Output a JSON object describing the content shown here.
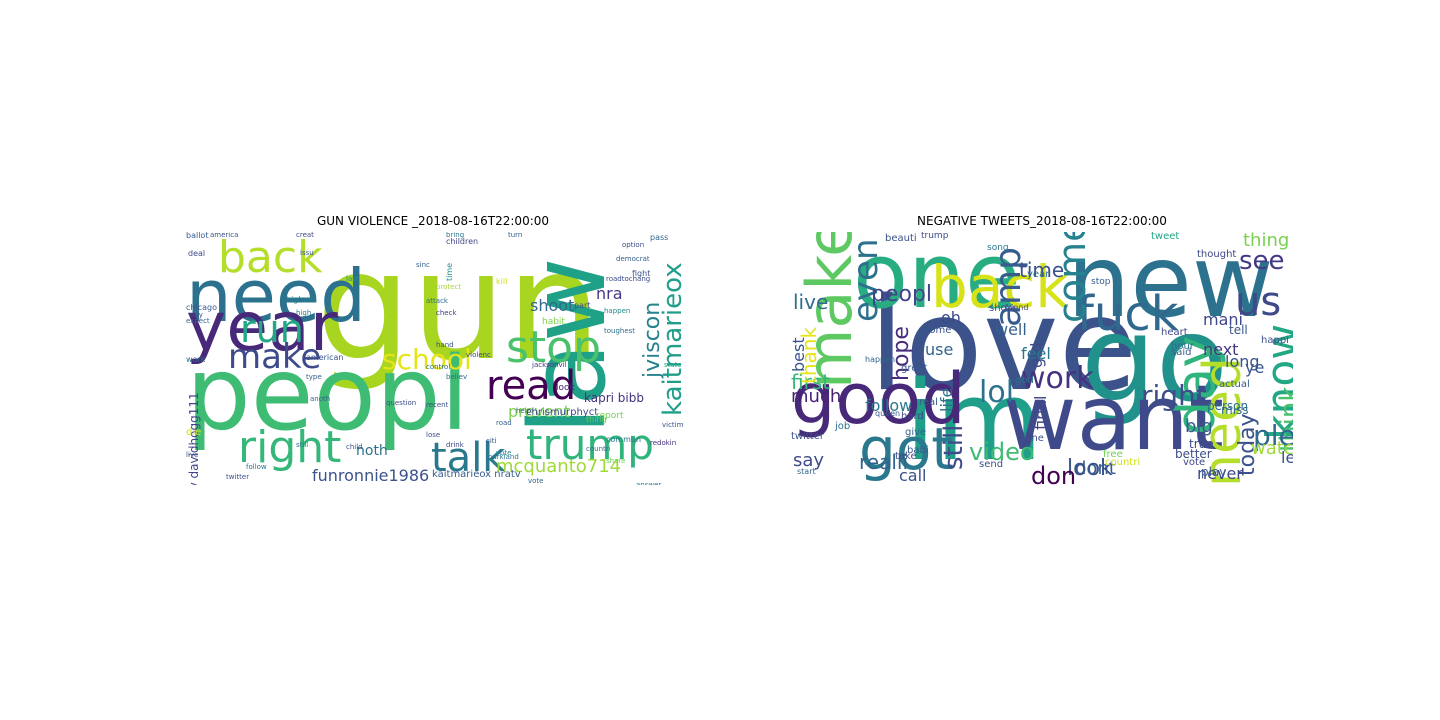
{
  "figure": {
    "panels": [
      {
        "title": "GUN VIOLENCE _2018-08-16T22:00:00",
        "words": [
          {
            "text": "gun",
            "color": "#a8d520"
          },
          {
            "text": "peopl",
            "color": "#3fbc73"
          },
          {
            "text": "law",
            "color": "#1fa187"
          },
          {
            "text": "need",
            "color": "#2c728e"
          },
          {
            "text": "year",
            "color": "#482878"
          },
          {
            "text": "back",
            "color": "#b5de2b"
          },
          {
            "text": "right",
            "color": "#35b779"
          },
          {
            "text": "make",
            "color": "#3e4a89"
          },
          {
            "text": "run",
            "color": "#22a884"
          },
          {
            "text": "stop",
            "color": "#4ac16d"
          },
          {
            "text": "read",
            "color": "#440154"
          },
          {
            "text": "trump",
            "color": "#2fb47c"
          },
          {
            "text": "talk",
            "color": "#2a788e"
          },
          {
            "text": "school",
            "color": "#e5e419"
          },
          {
            "text": "kaitmarieox",
            "color": "#1f9e89"
          },
          {
            "text": "jviscon",
            "color": "#26828e"
          },
          {
            "text": "shoot",
            "color": "#31688e"
          },
          {
            "text": "nra",
            "color": "#443a83"
          },
          {
            "text": "prevent",
            "color": "#7ad151"
          },
          {
            "text": "mcquanto714",
            "color": "#a0da39"
          },
          {
            "text": "funronnie1986",
            "color": "#3b528b"
          },
          {
            "text": "noth",
            "color": "#2d708e"
          },
          {
            "text": "kapri bibb",
            "color": "#46327e"
          },
          {
            "text": "chrismurphyct",
            "color": "#3e4989"
          },
          {
            "text": "nratv davidhogg111",
            "color": "#404588"
          },
          {
            "text": "kaitmarieox nratv",
            "color": "#365c8d"
          },
          {
            "text": "american",
            "color": "#3a548c"
          },
          {
            "text": "children",
            "color": "#414487"
          },
          {
            "text": "highest",
            "color": "#277f8e"
          },
          {
            "text": "parkland",
            "color": "#2b758e"
          },
          {
            "text": "habit",
            "color": "#7fd34e"
          },
          {
            "text": "part",
            "color": "#3d4d8a"
          },
          {
            "text": "look",
            "color": "#482173"
          },
          {
            "text": "toughest",
            "color": "#2e6f8e"
          },
          {
            "text": "commun",
            "color": "#2a768e"
          },
          {
            "text": "believ",
            "color": "#2f6b8e"
          },
          {
            "text": "violenc",
            "color": "#3f4788"
          },
          {
            "text": "chicago",
            "color": "#38598c"
          },
          {
            "text": "thing",
            "color": "#5ec962"
          },
          {
            "text": "vote",
            "color": "#24868e"
          },
          {
            "text": "protect",
            "color": "#a5db36"
          },
          {
            "text": "happen",
            "color": "#23898e"
          },
          {
            "text": "pass",
            "color": "#30698e"
          },
          {
            "text": "fight",
            "color": "#3b528b"
          },
          {
            "text": "time",
            "color": "#21918c"
          },
          {
            "text": "still",
            "color": "#2c718e"
          },
          {
            "text": "creat",
            "color": "#404688"
          },
          {
            "text": "deal",
            "color": "#3f4889"
          },
          {
            "text": "kill",
            "color": "#d0e11c"
          },
          {
            "text": "expect",
            "color": "#33638d"
          },
          {
            "text": "work",
            "color": "#2e6e8e"
          },
          {
            "text": "day",
            "color": "#3c4f8a"
          },
          {
            "text": "follow",
            "color": "#2d718e"
          },
          {
            "text": "bring",
            "color": "#2a778e"
          },
          {
            "text": "road",
            "color": "#365d8d"
          },
          {
            "text": "help",
            "color": "#3c508b"
          },
          {
            "text": "lose",
            "color": "#3e4c8a"
          },
          {
            "text": "child",
            "color": "#38588c"
          },
          {
            "text": "report",
            "color": "#75d054"
          },
          {
            "text": "countri",
            "color": "#2e6d8e"
          },
          {
            "text": "drink",
            "color": "#3f4889"
          },
          {
            "text": "citi",
            "color": "#3b528b"
          },
          {
            "text": "die",
            "color": "#d2e21b"
          },
          {
            "text": "live",
            "color": "#3e4a89"
          },
          {
            "text": "check",
            "color": "#404588"
          },
          {
            "text": "sinc",
            "color": "#33628d"
          },
          {
            "text": "last",
            "color": "#21918c"
          },
          {
            "text": "america",
            "color": "#3a538b"
          },
          {
            "text": "ballot",
            "color": "#365c8d"
          },
          {
            "text": "attack",
            "color": "#2d708e"
          },
          {
            "text": "question",
            "color": "#3d4e8a"
          },
          {
            "text": "state",
            "color": "#21a685"
          },
          {
            "text": "turn",
            "color": "#33628d"
          },
          {
            "text": "option",
            "color": "#3e4a89"
          },
          {
            "text": "control",
            "color": "#2e6e8e"
          },
          {
            "text": "hand",
            "color": "#3b518b"
          },
          {
            "text": "issu",
            "color": "#39568c"
          },
          {
            "text": "high",
            "color": "#2a788e"
          },
          {
            "text": "recent",
            "color": "#3c4f8a"
          },
          {
            "text": "vote",
            "color": "#31668e"
          },
          {
            "text": "redokin",
            "color": "#472f7d"
          },
          {
            "text": "victim",
            "color": "#3b528b"
          },
          {
            "text": "share",
            "color": "#6ece58"
          },
          {
            "text": "jacksonvil",
            "color": "#453781"
          },
          {
            "text": "roadtochang",
            "color": "#3e4989"
          },
          {
            "text": "democrat",
            "color": "#34608d"
          },
          {
            "text": "answer",
            "color": "#2d718e"
          },
          {
            "text": "anoth",
            "color": "#355e8d"
          },
          {
            "text": "twitter",
            "color": "#3b528b"
          },
          {
            "text": "type",
            "color": "#38598c"
          }
        ]
      },
      {
        "title": "NEGATIVE TWEETS_2018-08-16T22:00:00",
        "words": [
          {
            "text": "love",
            "color": "#3b528b"
          },
          {
            "text": "go",
            "color": "#21918c"
          },
          {
            "text": "new",
            "color": "#2c728e"
          },
          {
            "text": "one",
            "color": "#27ad81"
          },
          {
            "text": "im",
            "color": "#1f9e89"
          },
          {
            "text": "want",
            "color": "#3e4a89"
          },
          {
            "text": "good",
            "color": "#482878"
          },
          {
            "text": "make",
            "color": "#5ec962"
          },
          {
            "text": "back",
            "color": "#d8e219"
          },
          {
            "text": "fuck",
            "color": "#31688e"
          },
          {
            "text": "got",
            "color": "#2a788e"
          },
          {
            "text": "day",
            "color": "#2fb47c"
          },
          {
            "text": "need",
            "color": "#b5de2b"
          },
          {
            "text": "know",
            "color": "#22a884"
          },
          {
            "text": "us",
            "color": "#3e4989"
          },
          {
            "text": "amp",
            "color": "#365c8d"
          },
          {
            "text": "even",
            "color": "#2d708e"
          },
          {
            "text": "work",
            "color": "#46327e"
          },
          {
            "text": "come",
            "color": "#26828e"
          },
          {
            "text": "see",
            "color": "#443983"
          },
          {
            "text": "think",
            "color": "#4ac16d"
          },
          {
            "text": "peopl",
            "color": "#404588"
          },
          {
            "text": "time",
            "color": "#3b518b"
          },
          {
            "text": "thing",
            "color": "#7ad151"
          },
          {
            "text": "right",
            "color": "#3d4d8a"
          },
          {
            "text": "pleas",
            "color": "#31688e"
          },
          {
            "text": "look",
            "color": "#3a548c"
          },
          {
            "text": "video",
            "color": "#3fbc73"
          },
          {
            "text": "realli",
            "color": "#33638d"
          },
          {
            "text": "lol",
            "color": "#2c728e"
          },
          {
            "text": "don",
            "color": "#440154"
          },
          {
            "text": "still",
            "color": "#3e4a89"
          },
          {
            "text": "today",
            "color": "#3b528b"
          },
          {
            "text": "first",
            "color": "#35b779"
          },
          {
            "text": "hope",
            "color": "#472d7b"
          },
          {
            "text": "thank",
            "color": "#e5e419"
          },
          {
            "text": "dont",
            "color": "#38598c"
          },
          {
            "text": "watch",
            "color": "#a0da39"
          },
          {
            "text": "big",
            "color": "#365d8d"
          },
          {
            "text": "mani",
            "color": "#404688"
          },
          {
            "text": "let",
            "color": "#3c508b"
          },
          {
            "text": "never",
            "color": "#3f4788"
          },
          {
            "text": "much",
            "color": "#482173"
          },
          {
            "text": "follow",
            "color": "#2a778e"
          },
          {
            "text": "say",
            "color": "#3e4c8a"
          },
          {
            "text": "call",
            "color": "#3c4f8a"
          },
          {
            "text": "live",
            "color": "#2e6e8e"
          },
          {
            "text": "best",
            "color": "#3a538b"
          },
          {
            "text": "use",
            "color": "#33628d"
          },
          {
            "text": "oh",
            "color": "#3f4889"
          },
          {
            "text": "well",
            "color": "#34608d"
          },
          {
            "text": "girl",
            "color": "#3e4a89"
          },
          {
            "text": "life",
            "color": "#2d718e"
          },
          {
            "text": "queen",
            "color": "#38588c"
          },
          {
            "text": "final",
            "color": "#404588"
          },
          {
            "text": "feel",
            "color": "#2a768e"
          },
          {
            "text": "long",
            "color": "#3b528b"
          },
          {
            "text": "next",
            "color": "#453781"
          },
          {
            "text": "ye",
            "color": "#39568c"
          },
          {
            "text": "true",
            "color": "#3e4989"
          },
          {
            "text": "miss",
            "color": "#30698e"
          },
          {
            "text": "better",
            "color": "#3d4e8a"
          },
          {
            "text": "play",
            "color": "#365c8d"
          },
          {
            "text": "person",
            "color": "#2e6d8e"
          },
          {
            "text": "tell",
            "color": "#3a548c"
          },
          {
            "text": "give",
            "color": "#33638d"
          },
          {
            "text": "hard",
            "color": "#3f4788"
          },
          {
            "text": "real",
            "color": "#38598c"
          },
          {
            "text": "twitter",
            "color": "#3b528b"
          },
          {
            "text": "job",
            "color": "#2c718e"
          },
          {
            "text": "take",
            "color": "#3e4a89"
          },
          {
            "text": "start",
            "color": "#31668e"
          },
          {
            "text": "god",
            "color": "#2d708e"
          },
          {
            "text": "year",
            "color": "#2e6f8e"
          },
          {
            "text": "done",
            "color": "#3c4f8a"
          },
          {
            "text": "said",
            "color": "#34608d"
          },
          {
            "text": "show",
            "color": "#3e4c8a"
          },
          {
            "text": "home",
            "color": "#3a538b"
          },
          {
            "text": "babi",
            "color": "#38588c"
          },
          {
            "text": "great",
            "color": "#39568c"
          },
          {
            "text": "send",
            "color": "#3b518b"
          },
          {
            "text": "song",
            "color": "#2a788e"
          },
          {
            "text": "friend",
            "color": "#3d4d8a"
          },
          {
            "text": "happen",
            "color": "#31688e"
          },
          {
            "text": "trump",
            "color": "#3e4a89"
          },
          {
            "text": "free",
            "color": "#75d054"
          },
          {
            "text": "tweet",
            "color": "#21a685"
          },
          {
            "text": "vote",
            "color": "#3f4889"
          },
          {
            "text": "countri",
            "color": "#d0e11c"
          },
          {
            "text": "actual",
            "color": "#365d8d"
          },
          {
            "text": "happi",
            "color": "#3c508b"
          },
          {
            "text": "hour",
            "color": "#2e6e8e"
          },
          {
            "text": "thought",
            "color": "#404688"
          },
          {
            "text": "beauti",
            "color": "#3b528b"
          },
          {
            "text": "heart",
            "color": "#3e4989"
          },
          {
            "text": "stop",
            "color": "#34608d"
          }
        ]
      }
    ]
  }
}
